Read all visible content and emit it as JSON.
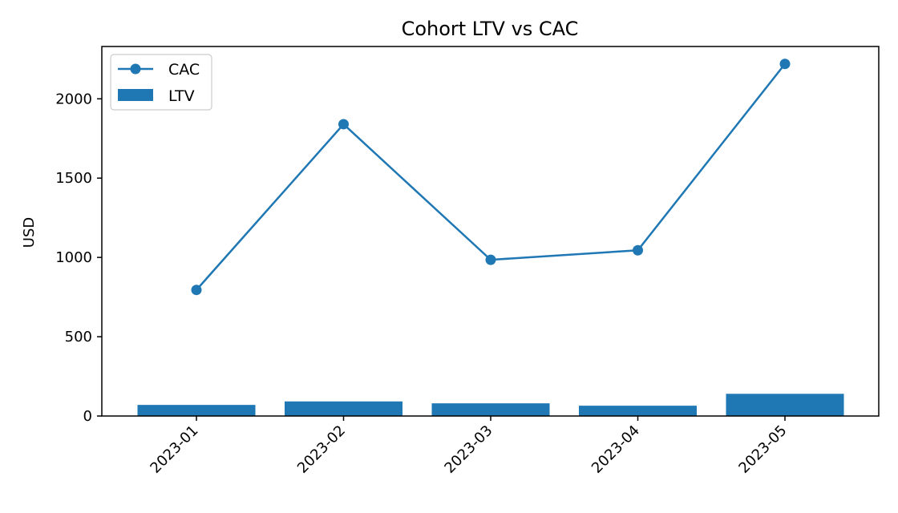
{
  "chart_data": {
    "type": "bar+line",
    "title": "Cohort LTV vs CAC",
    "xlabel": "",
    "ylabel": "USD",
    "categories": [
      "2023-01",
      "2023-02",
      "2023-03",
      "2023-04",
      "2023-05"
    ],
    "ylim": [
      0,
      2330
    ],
    "yticks": [
      0,
      500,
      1000,
      1500,
      2000
    ],
    "grid": false,
    "legend_position": "top-left",
    "series": [
      {
        "name": "CAC",
        "type": "line",
        "marker": "circle",
        "color": "#1f77b4",
        "values": [
          795,
          1840,
          985,
          1045,
          2220
        ]
      },
      {
        "name": "LTV",
        "type": "bar",
        "color": "#1f77b4",
        "values": [
          70,
          92,
          80,
          65,
          140
        ]
      }
    ]
  }
}
